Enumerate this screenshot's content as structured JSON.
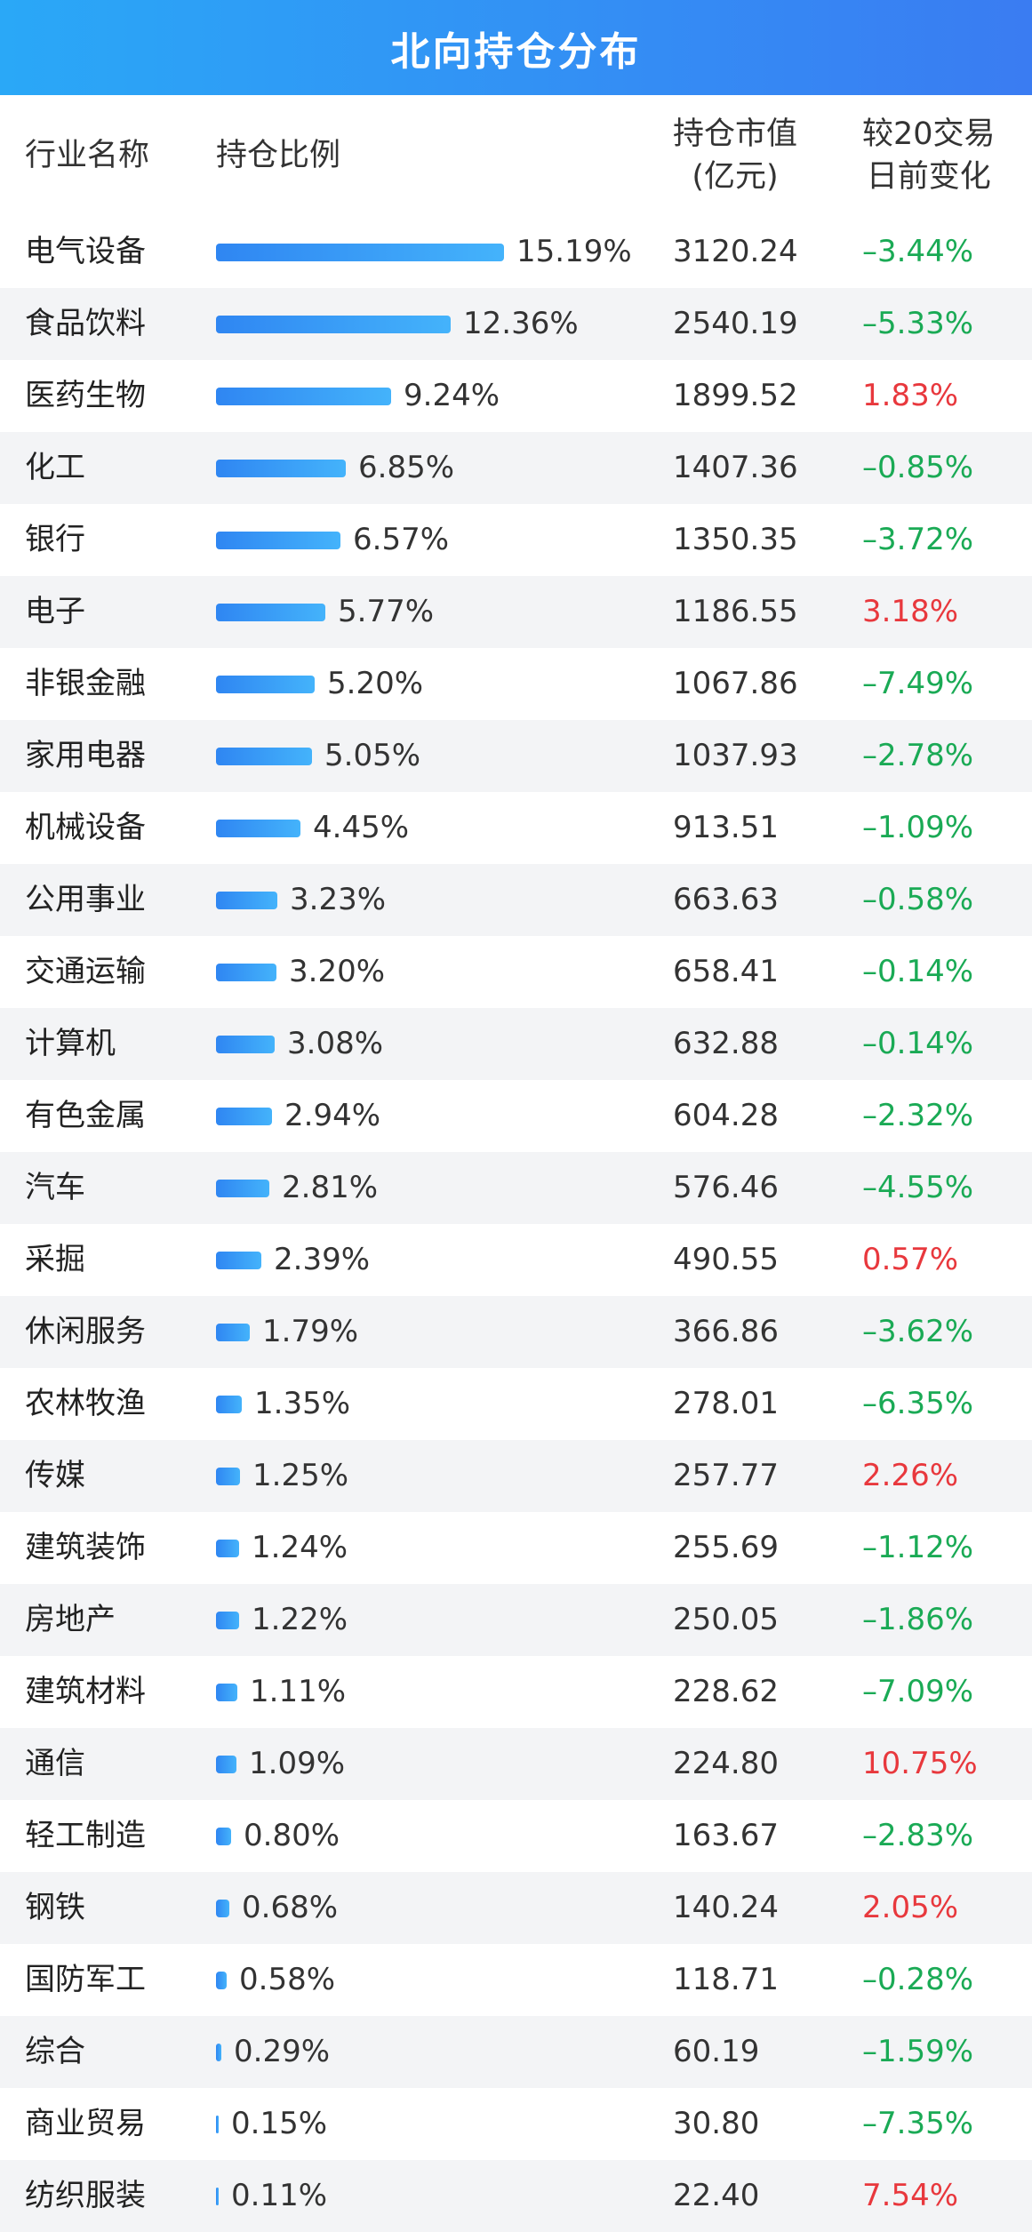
{
  "header": {
    "title": "北向持仓分布"
  },
  "columns": {
    "industry": "行业名称",
    "ratio": "持仓比例",
    "value_line1": "持仓市值",
    "value_line2": "(亿元)",
    "change_line1": "较20交易",
    "change_line2": "日前变化"
  },
  "colors": {
    "bar": "#3a8ef5",
    "negative": "#1aaa55",
    "positive": "#e8383d",
    "header": "#3a8ef5"
  },
  "chart_data": {
    "type": "table",
    "title": "北向持仓分布",
    "columns": [
      "行业名称",
      "持仓比例",
      "持仓市值(亿元)",
      "较20交易日前变化"
    ],
    "rows": [
      {
        "name": "电气设备",
        "ratio": 15.19,
        "ratio_label": "15.19%",
        "value": "3120.24",
        "change": -3.44,
        "change_label": "–3.44%"
      },
      {
        "name": "食品饮料",
        "ratio": 12.36,
        "ratio_label": "12.36%",
        "value": "2540.19",
        "change": -5.33,
        "change_label": "–5.33%"
      },
      {
        "name": "医药生物",
        "ratio": 9.24,
        "ratio_label": "9.24%",
        "value": "1899.52",
        "change": 1.83,
        "change_label": "1.83%"
      },
      {
        "name": "化工",
        "ratio": 6.85,
        "ratio_label": "6.85%",
        "value": "1407.36",
        "change": -0.85,
        "change_label": "–0.85%"
      },
      {
        "name": "银行",
        "ratio": 6.57,
        "ratio_label": "6.57%",
        "value": "1350.35",
        "change": -3.72,
        "change_label": "–3.72%"
      },
      {
        "name": "电子",
        "ratio": 5.77,
        "ratio_label": "5.77%",
        "value": "1186.55",
        "change": 3.18,
        "change_label": "3.18%"
      },
      {
        "name": "非银金融",
        "ratio": 5.2,
        "ratio_label": "5.20%",
        "value": "1067.86",
        "change": -7.49,
        "change_label": "–7.49%"
      },
      {
        "name": "家用电器",
        "ratio": 5.05,
        "ratio_label": "5.05%",
        "value": "1037.93",
        "change": -2.78,
        "change_label": "–2.78%"
      },
      {
        "name": "机械设备",
        "ratio": 4.45,
        "ratio_label": "4.45%",
        "value": "913.51",
        "change": -1.09,
        "change_label": "–1.09%"
      },
      {
        "name": "公用事业",
        "ratio": 3.23,
        "ratio_label": "3.23%",
        "value": "663.63",
        "change": -0.58,
        "change_label": "–0.58%"
      },
      {
        "name": "交通运输",
        "ratio": 3.2,
        "ratio_label": "3.20%",
        "value": "658.41",
        "change": -0.14,
        "change_label": "–0.14%"
      },
      {
        "name": "计算机",
        "ratio": 3.08,
        "ratio_label": "3.08%",
        "value": "632.88",
        "change": -0.14,
        "change_label": "–0.14%"
      },
      {
        "name": "有色金属",
        "ratio": 2.94,
        "ratio_label": "2.94%",
        "value": "604.28",
        "change": -2.32,
        "change_label": "–2.32%"
      },
      {
        "name": "汽车",
        "ratio": 2.81,
        "ratio_label": "2.81%",
        "value": "576.46",
        "change": -4.55,
        "change_label": "–4.55%"
      },
      {
        "name": "采掘",
        "ratio": 2.39,
        "ratio_label": "2.39%",
        "value": "490.55",
        "change": 0.57,
        "change_label": "0.57%"
      },
      {
        "name": "休闲服务",
        "ratio": 1.79,
        "ratio_label": "1.79%",
        "value": "366.86",
        "change": -3.62,
        "change_label": "–3.62%"
      },
      {
        "name": "农林牧渔",
        "ratio": 1.35,
        "ratio_label": "1.35%",
        "value": "278.01",
        "change": -6.35,
        "change_label": "–6.35%"
      },
      {
        "name": "传媒",
        "ratio": 1.25,
        "ratio_label": "1.25%",
        "value": "257.77",
        "change": 2.26,
        "change_label": "2.26%"
      },
      {
        "name": "建筑装饰",
        "ratio": 1.24,
        "ratio_label": "1.24%",
        "value": "255.69",
        "change": -1.12,
        "change_label": "–1.12%"
      },
      {
        "name": "房地产",
        "ratio": 1.22,
        "ratio_label": "1.22%",
        "value": "250.05",
        "change": -1.86,
        "change_label": "–1.86%"
      },
      {
        "name": "建筑材料",
        "ratio": 1.11,
        "ratio_label": "1.11%",
        "value": "228.62",
        "change": -7.09,
        "change_label": "–7.09%"
      },
      {
        "name": "通信",
        "ratio": 1.09,
        "ratio_label": "1.09%",
        "value": "224.80",
        "change": 10.75,
        "change_label": "10.75%"
      },
      {
        "name": "轻工制造",
        "ratio": 0.8,
        "ratio_label": "0.80%",
        "value": "163.67",
        "change": -2.83,
        "change_label": "–2.83%"
      },
      {
        "name": "钢铁",
        "ratio": 0.68,
        "ratio_label": "0.68%",
        "value": "140.24",
        "change": 2.05,
        "change_label": "2.05%"
      },
      {
        "name": "国防军工",
        "ratio": 0.58,
        "ratio_label": "0.58%",
        "value": "118.71",
        "change": -0.28,
        "change_label": "–0.28%"
      },
      {
        "name": "综合",
        "ratio": 0.29,
        "ratio_label": "0.29%",
        "value": "60.19",
        "change": -1.59,
        "change_label": "–1.59%"
      },
      {
        "name": "商业贸易",
        "ratio": 0.15,
        "ratio_label": "0.15%",
        "value": "30.80",
        "change": -7.35,
        "change_label": "–7.35%"
      },
      {
        "name": "纺织服装",
        "ratio": 0.11,
        "ratio_label": "0.11%",
        "value": "22.40",
        "change": 7.54,
        "change_label": "7.54%"
      }
    ]
  }
}
